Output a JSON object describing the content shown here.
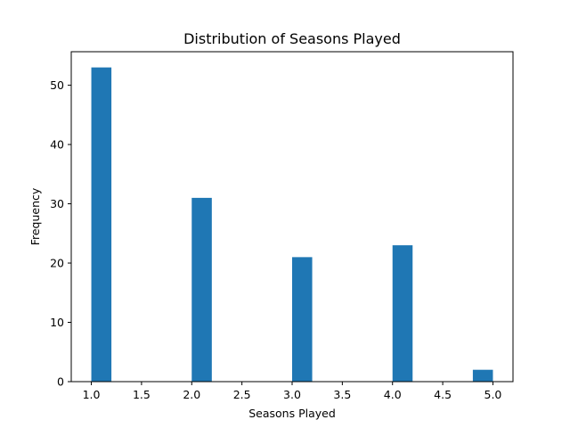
{
  "chart_data": {
    "type": "bar",
    "title": "Distribution of Seasons Played",
    "xlabel": "Seasons Played",
    "ylabel": "Frequency",
    "bins": [
      {
        "x_start": 1.0,
        "x_end": 1.2,
        "value": 53
      },
      {
        "x_start": 1.2,
        "x_end": 1.4,
        "value": 0
      },
      {
        "x_start": 1.4,
        "x_end": 1.6,
        "value": 0
      },
      {
        "x_start": 1.6,
        "x_end": 1.8,
        "value": 0
      },
      {
        "x_start": 1.8,
        "x_end": 2.0,
        "value": 0
      },
      {
        "x_start": 2.0,
        "x_end": 2.2,
        "value": 31
      },
      {
        "x_start": 2.2,
        "x_end": 2.4,
        "value": 0
      },
      {
        "x_start": 2.4,
        "x_end": 2.6,
        "value": 0
      },
      {
        "x_start": 2.6,
        "x_end": 2.8,
        "value": 0
      },
      {
        "x_start": 2.8,
        "x_end": 3.0,
        "value": 0
      },
      {
        "x_start": 3.0,
        "x_end": 3.2,
        "value": 21
      },
      {
        "x_start": 3.2,
        "x_end": 3.4,
        "value": 0
      },
      {
        "x_start": 3.4,
        "x_end": 3.6,
        "value": 0
      },
      {
        "x_start": 3.6,
        "x_end": 3.8,
        "value": 0
      },
      {
        "x_start": 3.8,
        "x_end": 4.0,
        "value": 0
      },
      {
        "x_start": 4.0,
        "x_end": 4.2,
        "value": 23
      },
      {
        "x_start": 4.2,
        "x_end": 4.4,
        "value": 0
      },
      {
        "x_start": 4.4,
        "x_end": 4.6,
        "value": 0
      },
      {
        "x_start": 4.6,
        "x_end": 4.8,
        "value": 0
      },
      {
        "x_start": 4.8,
        "x_end": 5.0,
        "value": 2
      }
    ],
    "xlim": [
      0.8,
      5.2
    ],
    "ylim": [
      0,
      55.65
    ],
    "x_ticks": [
      "1.0",
      "1.5",
      "2.0",
      "2.5",
      "3.0",
      "3.5",
      "4.0",
      "4.5",
      "5.0"
    ],
    "y_ticks": [
      "0",
      "10",
      "20",
      "30",
      "40",
      "50"
    ],
    "bar_color": "#1f77b4",
    "grid": false
  }
}
